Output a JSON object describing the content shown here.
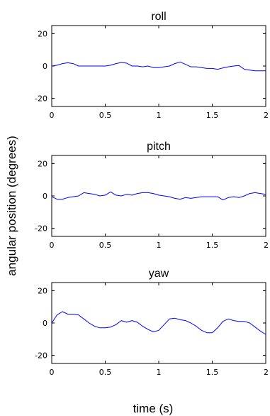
{
  "figure": {
    "xlabel": "time (s)",
    "ylabel": "angular position (degrees)"
  },
  "chart_data": [
    {
      "type": "line",
      "title": "roll",
      "xlim": [
        0,
        2
      ],
      "ylim": [
        -25,
        25
      ],
      "xticks": [
        "0",
        "0.5",
        "1",
        "1.5",
        "2"
      ],
      "yticks": [
        "20",
        "0",
        "-20"
      ],
      "ytick_values": [
        20,
        0,
        -20
      ],
      "xtick_values": [
        0,
        0.5,
        1,
        1.5,
        2
      ],
      "line_color": "#0000ff",
      "series": [
        {
          "x": [
            0,
            0.05,
            0.1,
            0.15,
            0.2,
            0.25,
            0.3,
            0.4,
            0.5,
            0.55,
            0.6,
            0.65,
            0.7,
            0.75,
            0.8,
            0.85,
            0.9,
            0.95,
            1.0,
            1.05,
            1.1,
            1.15,
            1.2,
            1.25,
            1.3,
            1.35,
            1.4,
            1.45,
            1.5,
            1.55,
            1.6,
            1.65,
            1.7,
            1.75,
            1.8,
            1.85,
            1.9,
            1.95,
            2.0
          ],
          "y": [
            0,
            0.5,
            1.5,
            2,
            1.5,
            0,
            0,
            0,
            0,
            0.5,
            1.5,
            2.2,
            1.8,
            0,
            0,
            -0.5,
            0,
            -1,
            -1,
            -0.5,
            0,
            1.5,
            2.5,
            1,
            -0.5,
            -0.5,
            -1,
            -1.5,
            -1.5,
            -2,
            -1.2,
            -0.5,
            0,
            0.3,
            -2,
            -2.5,
            -3,
            -3,
            -3
          ]
        }
      ]
    },
    {
      "type": "line",
      "title": "pitch",
      "xlim": [
        0,
        2
      ],
      "ylim": [
        -25,
        25
      ],
      "xticks": [
        "0",
        "0.5",
        "1",
        "1.5",
        "2"
      ],
      "yticks": [
        "20",
        "0",
        "-20"
      ],
      "ytick_values": [
        20,
        0,
        -20
      ],
      "xtick_values": [
        0,
        0.5,
        1,
        1.5,
        2
      ],
      "line_color": "#0000ff",
      "series": [
        {
          "x": [
            0,
            0.05,
            0.1,
            0.15,
            0.2,
            0.25,
            0.3,
            0.35,
            0.4,
            0.45,
            0.5,
            0.55,
            0.6,
            0.65,
            0.7,
            0.75,
            0.8,
            0.85,
            0.9,
            0.95,
            1.0,
            1.05,
            1.1,
            1.15,
            1.2,
            1.25,
            1.3,
            1.35,
            1.4,
            1.45,
            1.5,
            1.55,
            1.6,
            1.65,
            1.7,
            1.75,
            1.8,
            1.85,
            1.9,
            1.95,
            2.0
          ],
          "y": [
            -0.5,
            -2,
            -2,
            -1,
            -0.5,
            0,
            2,
            1.5,
            1,
            0,
            0.5,
            2.5,
            0.5,
            0,
            1,
            0.5,
            1.5,
            2,
            2,
            1.5,
            0.5,
            0,
            -0.5,
            -1.5,
            -2,
            -1,
            -1.5,
            -1,
            -0.5,
            -0.5,
            -0.5,
            -0.5,
            -2.5,
            -1,
            -0.5,
            -1,
            0,
            1.5,
            2,
            1.5,
            1
          ]
        }
      ]
    },
    {
      "type": "line",
      "title": "yaw",
      "xlim": [
        0,
        2
      ],
      "ylim": [
        -25,
        25
      ],
      "xticks": [
        "0",
        "0.5",
        "1",
        "1.5",
        "2"
      ],
      "yticks": [
        "20",
        "0",
        "-20"
      ],
      "ytick_values": [
        20,
        0,
        -20
      ],
      "xtick_values": [
        0,
        0.5,
        1,
        1.5,
        2
      ],
      "line_color": "#0000ff",
      "series": [
        {
          "x": [
            0,
            0.05,
            0.1,
            0.15,
            0.2,
            0.25,
            0.3,
            0.35,
            0.4,
            0.45,
            0.5,
            0.55,
            0.6,
            0.65,
            0.7,
            0.75,
            0.8,
            0.85,
            0.9,
            0.95,
            1.0,
            1.05,
            1.1,
            1.15,
            1.2,
            1.25,
            1.3,
            1.35,
            1.4,
            1.45,
            1.5,
            1.55,
            1.6,
            1.65,
            1.7,
            1.75,
            1.8,
            1.85,
            1.9,
            1.95,
            2.0
          ],
          "y": [
            0,
            5,
            7,
            5.5,
            5.5,
            5,
            2.5,
            0,
            -2,
            -3,
            -3,
            -2.5,
            -1,
            1.5,
            0.5,
            1.5,
            0.5,
            -2,
            -4,
            -5.5,
            -4.5,
            -1,
            2.5,
            3,
            2,
            1.5,
            0,
            -2,
            -4.5,
            -6,
            -6,
            -3,
            1,
            2.5,
            1.5,
            1,
            1,
            0,
            -2.5,
            -5,
            -7
          ]
        }
      ]
    }
  ]
}
